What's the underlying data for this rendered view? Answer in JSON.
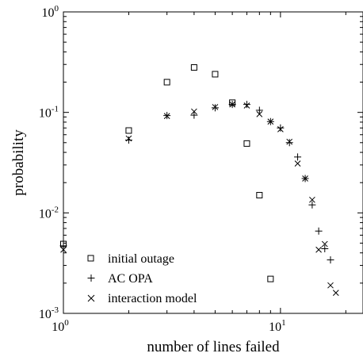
{
  "chart_data": {
    "type": "scatter",
    "xlabel": "number of lines failed",
    "ylabel": "probability",
    "x_scale": "log",
    "y_scale": "log",
    "xlim": [
      1,
      24
    ],
    "ylim": [
      0.001,
      1
    ],
    "x_ticks": [
      {
        "value": 1,
        "base": "10",
        "exp": "0"
      },
      {
        "value": 10,
        "base": "10",
        "exp": "1"
      }
    ],
    "y_ticks": [
      {
        "value": 0.001,
        "base": "10",
        "exp": "-3"
      },
      {
        "value": 0.01,
        "base": "10",
        "exp": "-2"
      },
      {
        "value": 0.1,
        "base": "10",
        "exp": "-1"
      },
      {
        "value": 1,
        "base": "10",
        "exp": "0"
      }
    ],
    "grid": false,
    "legend_position": "bottom-left",
    "series": [
      {
        "name": "initial outage",
        "marker": "square",
        "points": [
          [
            1,
            0.0049
          ],
          [
            2,
            0.066
          ],
          [
            3,
            0.2
          ],
          [
            4,
            0.28
          ],
          [
            5,
            0.24
          ],
          [
            6,
            0.125
          ],
          [
            7,
            0.049
          ],
          [
            8,
            0.015
          ],
          [
            9,
            0.0022
          ]
        ]
      },
      {
        "name": "AC OPA",
        "marker": "plus",
        "points": [
          [
            1,
            0.0047
          ],
          [
            2,
            0.053
          ],
          [
            3,
            0.093
          ],
          [
            4,
            0.094
          ],
          [
            5,
            0.111
          ],
          [
            6,
            0.12
          ],
          [
            7,
            0.12
          ],
          [
            8,
            0.105
          ],
          [
            9,
            0.081
          ],
          [
            10,
            0.07
          ],
          [
            11,
            0.05
          ],
          [
            12,
            0.036
          ],
          [
            13,
            0.022
          ],
          [
            14,
            0.012
          ],
          [
            15,
            0.0066
          ],
          [
            16,
            0.0044
          ],
          [
            17,
            0.0034
          ]
        ]
      },
      {
        "name": "interaction model",
        "marker": "x",
        "points": [
          [
            1,
            0.0043
          ],
          [
            2,
            0.055
          ],
          [
            3,
            0.092
          ],
          [
            4,
            0.102
          ],
          [
            5,
            0.113
          ],
          [
            6,
            0.12
          ],
          [
            7,
            0.117
          ],
          [
            8,
            0.096
          ],
          [
            9,
            0.081
          ],
          [
            10,
            0.068
          ],
          [
            11,
            0.051
          ],
          [
            12,
            0.031
          ],
          [
            13,
            0.022
          ],
          [
            14,
            0.0135
          ],
          [
            15,
            0.0043
          ],
          [
            16,
            0.0049
          ],
          [
            17,
            0.0019
          ],
          [
            18,
            0.0016
          ]
        ]
      }
    ]
  }
}
